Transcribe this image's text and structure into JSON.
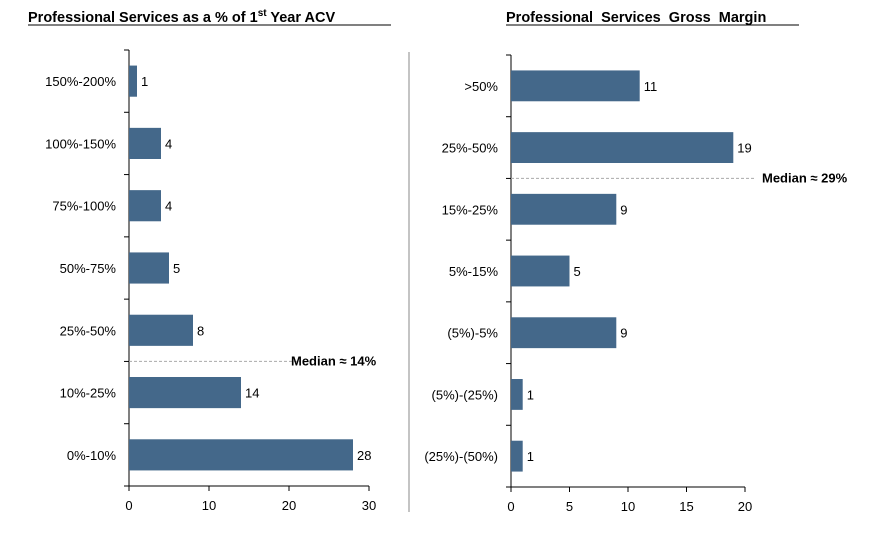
{
  "chart_data": [
    {
      "type": "bar",
      "orientation": "horizontal",
      "title_main": "Professional  Services  as a % of 1",
      "title_sup": "st",
      "title_end": " Year ACV",
      "categories": [
        "150%-200%",
        "100%-150%",
        "75%-100%",
        "50%-75%",
        "25%-50%",
        "10%-25%",
        "0%-10%"
      ],
      "values": [
        1,
        4,
        4,
        5,
        8,
        14,
        28
      ],
      "xlim": [
        0,
        30
      ],
      "xticks": [
        "0",
        "10",
        "20",
        "30"
      ],
      "annotation": "Median ≈ 14%",
      "median_between": [
        "25%-50%",
        "10%-25%"
      ],
      "bar_color": "#44688a",
      "grid": false
    },
    {
      "type": "bar",
      "orientation": "horizontal",
      "title": "Professional  Services  Gross  Margin",
      "categories": [
        ">50%",
        "25%-50%",
        "15%-25%",
        "5%-15%",
        "(5%)-5%",
        "(5%)-(25%)",
        "(25%)-(50%)"
      ],
      "values": [
        11,
        19,
        9,
        5,
        9,
        1,
        1
      ],
      "xlim": [
        0,
        20
      ],
      "xticks": [
        "0",
        "5",
        "10",
        "15",
        "20"
      ],
      "annotation": "Median ≈ 29%",
      "median_between": [
        "25%-50%",
        "15%-25%"
      ],
      "bar_color": "#44688a",
      "grid": false
    }
  ]
}
